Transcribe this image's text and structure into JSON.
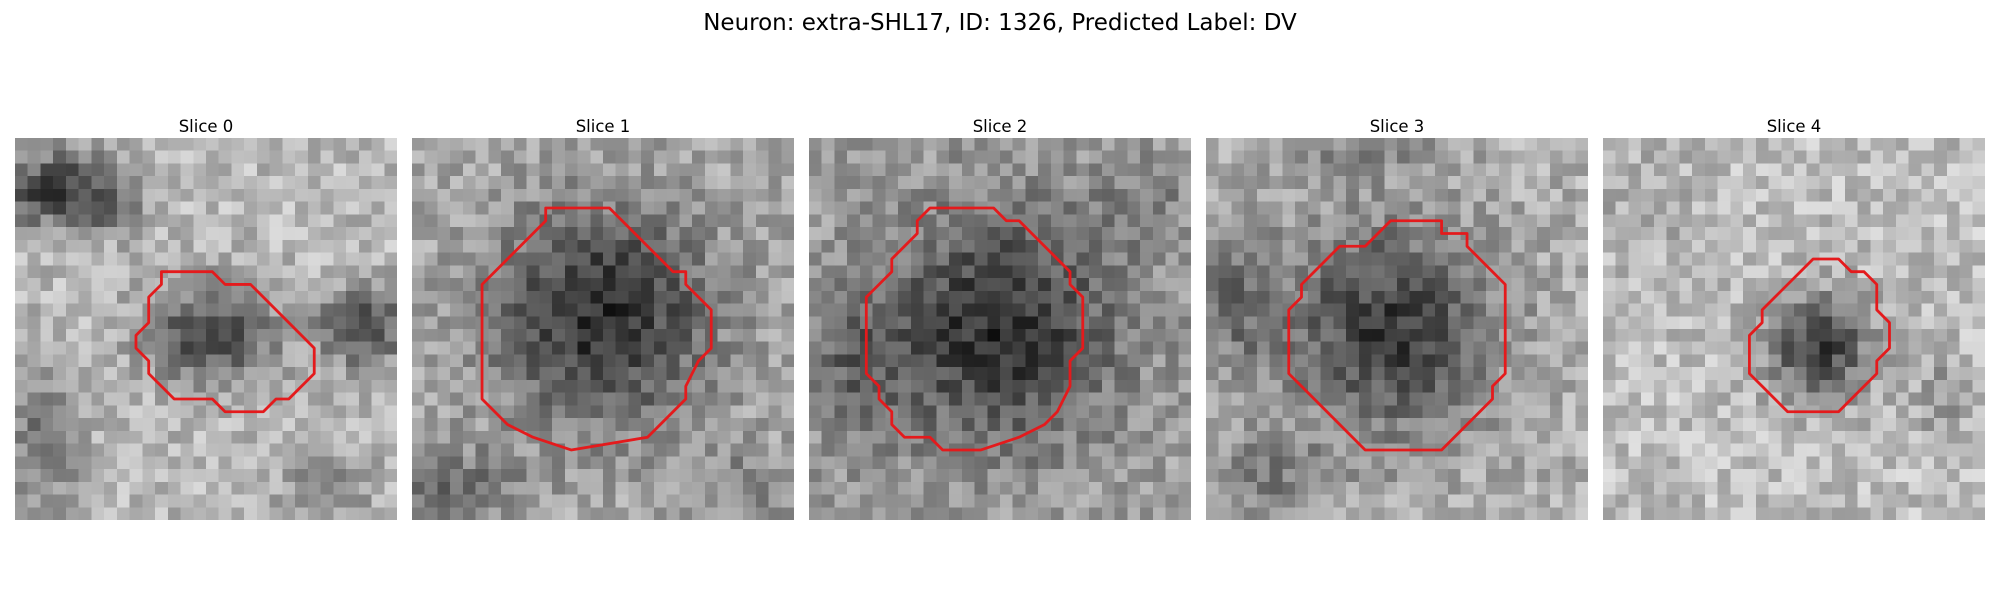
{
  "figure": {
    "title": "Neuron: extra-SHL17, ID: 1326, Predicted Label: DV"
  },
  "panels": [
    {
      "title": "Slice 0",
      "contour_color": "#e41a1c"
    },
    {
      "title": "Slice 1",
      "contour_color": "#e41a1c"
    },
    {
      "title": "Slice 2",
      "contour_color": "#e41a1c"
    },
    {
      "title": "Slice 3",
      "contour_color": "#e41a1c"
    },
    {
      "title": "Slice 4",
      "contour_color": "#e41a1c"
    }
  ]
}
